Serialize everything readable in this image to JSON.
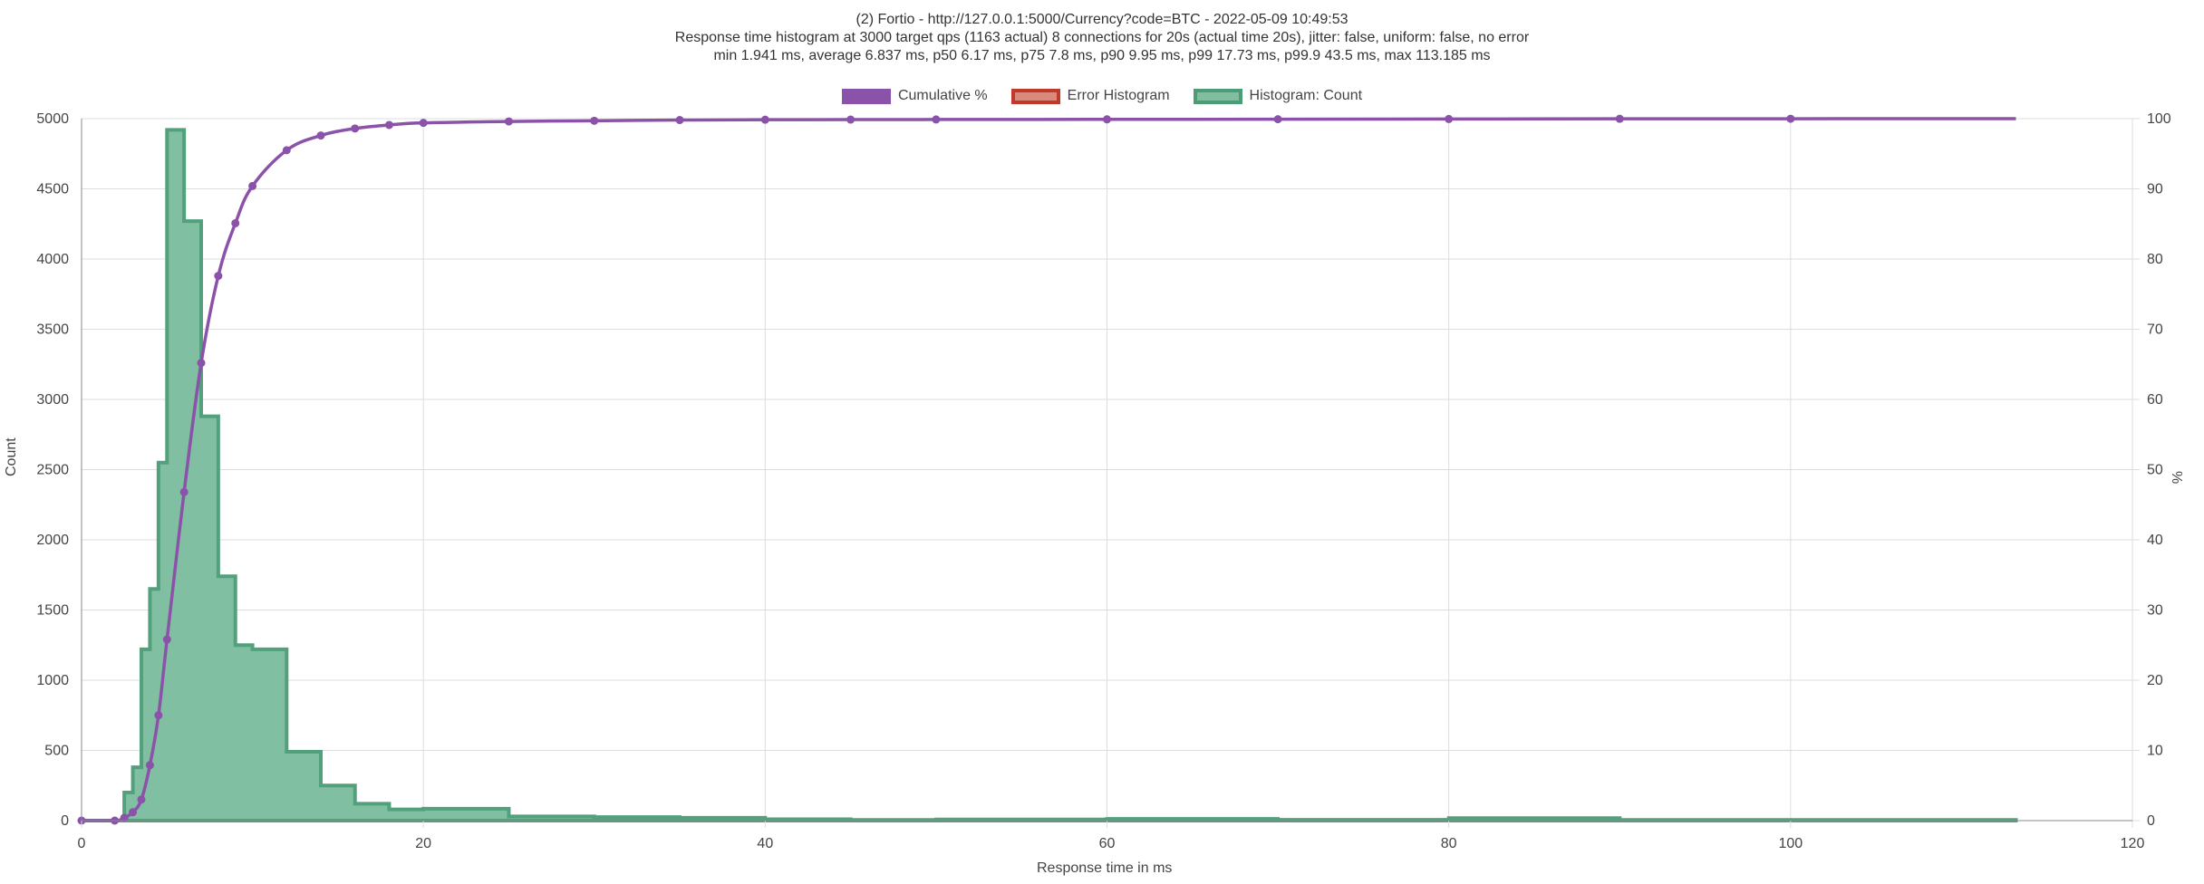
{
  "titles": [
    "(2) Fortio - http://127.0.0.1:5000/Currency?code=BTC - 2022-05-09 10:49:53",
    "Response time histogram at 3000 target qps (1163 actual) 8 connections for 20s (actual time 20s), jitter: false, uniform: false, no error",
    "min 1.941 ms, average 6.837 ms, p50 6.17 ms, p75 7.8 ms, p90 9.95 ms, p99 17.73 ms, p99.9 43.5 ms, max 113.185 ms"
  ],
  "legend": [
    {
      "label": "Cumulative %",
      "fill": "#8a52a8",
      "border": "#8a52a8"
    },
    {
      "label": "Error Histogram",
      "fill": "#d98a7a",
      "border": "#c0392b"
    },
    {
      "label": "Histogram: Count",
      "fill": "#7fbfa0",
      "border": "#4c9c78"
    }
  ],
  "colors": {
    "cumulative": "#8a52a8",
    "histogram_fill": "#80bfa1",
    "histogram_border": "#52a07c",
    "grid": "#dddddd",
    "axis": "#888888"
  },
  "chart_data": {
    "type": "area",
    "xlabel": "Response time in ms",
    "ylabel_left": "Count",
    "ylabel_right": "%",
    "xlim": [
      0,
      120
    ],
    "ylim_left": [
      0,
      5000
    ],
    "ylim_right": [
      0,
      100
    ],
    "x_ticks": [
      0,
      20,
      40,
      60,
      80,
      100,
      120
    ],
    "y_left_ticks": [
      0,
      500,
      1000,
      1500,
      2000,
      2500,
      3000,
      3500,
      4000,
      4500,
      5000
    ],
    "y_right_ticks": [
      0,
      10,
      20,
      30,
      40,
      50,
      60,
      70,
      80,
      90,
      100
    ],
    "grid": true,
    "legend_position": "top-center",
    "series": [
      {
        "name": "Histogram: Count",
        "kind": "step-area",
        "bins": [
          [
            0,
            0
          ],
          [
            1.941,
            0
          ],
          [
            2.5,
            10
          ],
          [
            2.5,
            200
          ],
          [
            3,
            380
          ],
          [
            3.5,
            1220
          ],
          [
            4,
            1650
          ],
          [
            4.5,
            2550
          ],
          [
            5,
            4920
          ],
          [
            6,
            4270
          ],
          [
            7,
            2880
          ],
          [
            8,
            1740
          ],
          [
            9,
            1250
          ],
          [
            10,
            1220
          ],
          [
            12,
            490
          ],
          [
            14,
            250
          ],
          [
            16,
            120
          ],
          [
            18,
            80
          ],
          [
            20,
            85
          ],
          [
            25,
            30
          ],
          [
            30,
            25
          ],
          [
            35,
            20
          ],
          [
            40,
            10
          ],
          [
            45,
            5
          ],
          [
            50,
            8
          ],
          [
            60,
            12
          ],
          [
            70,
            6
          ],
          [
            80,
            18
          ],
          [
            90,
            5
          ],
          [
            113.185,
            5
          ]
        ]
      },
      {
        "name": "Cumulative %",
        "kind": "line",
        "points": [
          [
            0,
            0
          ],
          [
            1.941,
            0
          ],
          [
            2.5,
            0.4
          ],
          [
            3,
            1.2
          ],
          [
            3.5,
            3.0
          ],
          [
            4,
            7.9
          ],
          [
            4.5,
            15.0
          ],
          [
            5,
            25.8
          ],
          [
            6,
            46.8
          ],
          [
            7,
            65.2
          ],
          [
            8,
            77.6
          ],
          [
            9,
            85.1
          ],
          [
            10,
            90.4
          ],
          [
            12,
            95.5
          ],
          [
            14,
            97.6
          ],
          [
            16,
            98.6
          ],
          [
            18,
            99.1
          ],
          [
            20,
            99.4
          ],
          [
            25,
            99.6
          ],
          [
            30,
            99.7
          ],
          [
            35,
            99.8
          ],
          [
            40,
            99.85
          ],
          [
            45,
            99.87
          ],
          [
            50,
            99.88
          ],
          [
            60,
            99.9
          ],
          [
            70,
            99.92
          ],
          [
            80,
            99.95
          ],
          [
            90,
            99.98
          ],
          [
            100,
            99.99
          ],
          [
            113.185,
            100
          ]
        ]
      },
      {
        "name": "Error Histogram",
        "kind": "step-area",
        "bins": []
      }
    ]
  }
}
